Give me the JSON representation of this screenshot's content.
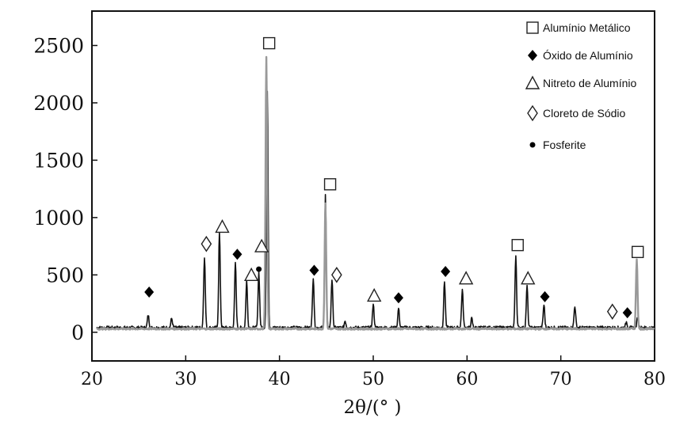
{
  "chart_data": {
    "type": "line",
    "title": "",
    "xlabel": "2θ/(°  )",
    "ylabel": "",
    "xlim": [
      20,
      80
    ],
    "ylim": [
      -250,
      2800
    ],
    "x_ticks": [
      20,
      30,
      40,
      50,
      60,
      70,
      80
    ],
    "y_ticks": [
      0,
      500,
      1000,
      1500,
      2000,
      2500
    ],
    "grid": false,
    "legend_position": "top-right",
    "legend": [
      {
        "marker": "square-open",
        "label": "Alumínio Metálico"
      },
      {
        "marker": "diamond-filled",
        "label": "Óxido de Alumínio"
      },
      {
        "marker": "triangle-open",
        "label": "Nitreto de Alumínio"
      },
      {
        "marker": "diamond-open",
        "label": "Cloreto de Sódio"
      },
      {
        "marker": "dot-filled",
        "label": "Fosferite"
      }
    ],
    "series": [
      {
        "color": "#111111",
        "baseline": 40,
        "peaks": [
          [
            21.0,
            40
          ],
          [
            26.0,
            150
          ],
          [
            28.5,
            120
          ],
          [
            32.0,
            660
          ],
          [
            33.6,
            870
          ],
          [
            35.3,
            610
          ],
          [
            36.5,
            450
          ],
          [
            37.8,
            520
          ],
          [
            38.7,
            2100
          ],
          [
            43.6,
            480
          ],
          [
            44.9,
            1200
          ],
          [
            45.6,
            460
          ],
          [
            47.0,
            100
          ],
          [
            50.0,
            240
          ],
          [
            52.7,
            210
          ],
          [
            57.6,
            440
          ],
          [
            59.5,
            370
          ],
          [
            60.5,
            120
          ],
          [
            65.2,
            670
          ],
          [
            66.4,
            400
          ],
          [
            68.2,
            240
          ],
          [
            71.5,
            230
          ],
          [
            77.0,
            90
          ],
          [
            78.2,
            130
          ]
        ]
      },
      {
        "color": "#999999",
        "baseline": 30,
        "peaks": [
          [
            21.0,
            30
          ],
          [
            38.6,
            2400
          ],
          [
            44.9,
            1130
          ],
          [
            78.1,
            640
          ]
        ]
      }
    ],
    "annotations": [
      {
        "marker": "square-open",
        "x": 38.9,
        "y": 2520
      },
      {
        "marker": "square-open",
        "x": 45.4,
        "y": 1290
      },
      {
        "marker": "square-open",
        "x": 65.4,
        "y": 760
      },
      {
        "marker": "square-open",
        "x": 78.2,
        "y": 700
      },
      {
        "marker": "diamond-filled",
        "x": 26.1,
        "y": 350
      },
      {
        "marker": "diamond-filled",
        "x": 35.5,
        "y": 680
      },
      {
        "marker": "diamond-filled",
        "x": 43.7,
        "y": 540
      },
      {
        "marker": "diamond-filled",
        "x": 52.7,
        "y": 300
      },
      {
        "marker": "diamond-filled",
        "x": 57.7,
        "y": 530
      },
      {
        "marker": "diamond-filled",
        "x": 68.3,
        "y": 310
      },
      {
        "marker": "diamond-filled",
        "x": 77.1,
        "y": 170
      },
      {
        "marker": "triangle-open",
        "x": 33.9,
        "y": 920
      },
      {
        "marker": "triangle-open",
        "x": 37.0,
        "y": 500
      },
      {
        "marker": "triangle-open",
        "x": 38.1,
        "y": 750
      },
      {
        "marker": "triangle-open",
        "x": 50.1,
        "y": 320
      },
      {
        "marker": "triangle-open",
        "x": 59.9,
        "y": 470
      },
      {
        "marker": "triangle-open",
        "x": 66.5,
        "y": 470
      },
      {
        "marker": "diamond-open",
        "x": 32.2,
        "y": 770
      },
      {
        "marker": "diamond-open",
        "x": 46.1,
        "y": 500
      },
      {
        "marker": "diamond-open",
        "x": 75.5,
        "y": 180
      },
      {
        "marker": "dot-filled",
        "x": 37.8,
        "y": 550
      }
    ]
  }
}
